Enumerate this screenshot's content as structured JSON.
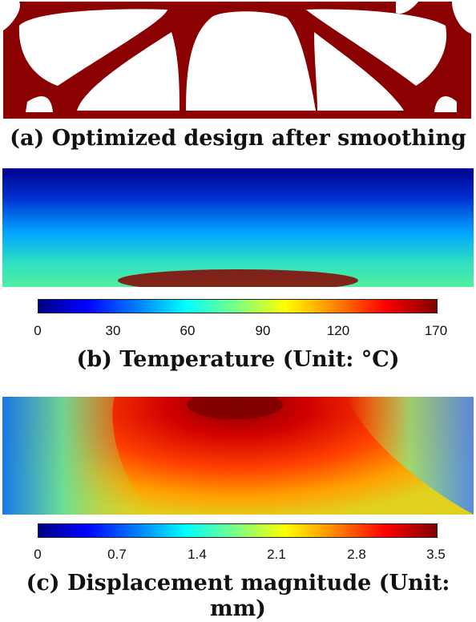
{
  "panels": [
    {
      "id": "a",
      "caption": "(a) Optimized design after smoothing"
    },
    {
      "id": "b",
      "caption": "(b) Temperature (Unit: °C)",
      "colorbar": {
        "ticks": [
          "0",
          "30",
          "60",
          "90",
          "120",
          "170"
        ],
        "range": [
          0,
          170
        ]
      }
    },
    {
      "id": "c",
      "caption": "(c) Displacement magnitude (Unit: mm)",
      "colorbar": {
        "ticks": [
          "0",
          "0.7",
          "1.4",
          "2.1",
          "2.8",
          "3.5"
        ],
        "range": [
          0,
          3.5
        ]
      }
    }
  ],
  "colors": {
    "structure": "#8b0000",
    "colormap": "jet"
  }
}
